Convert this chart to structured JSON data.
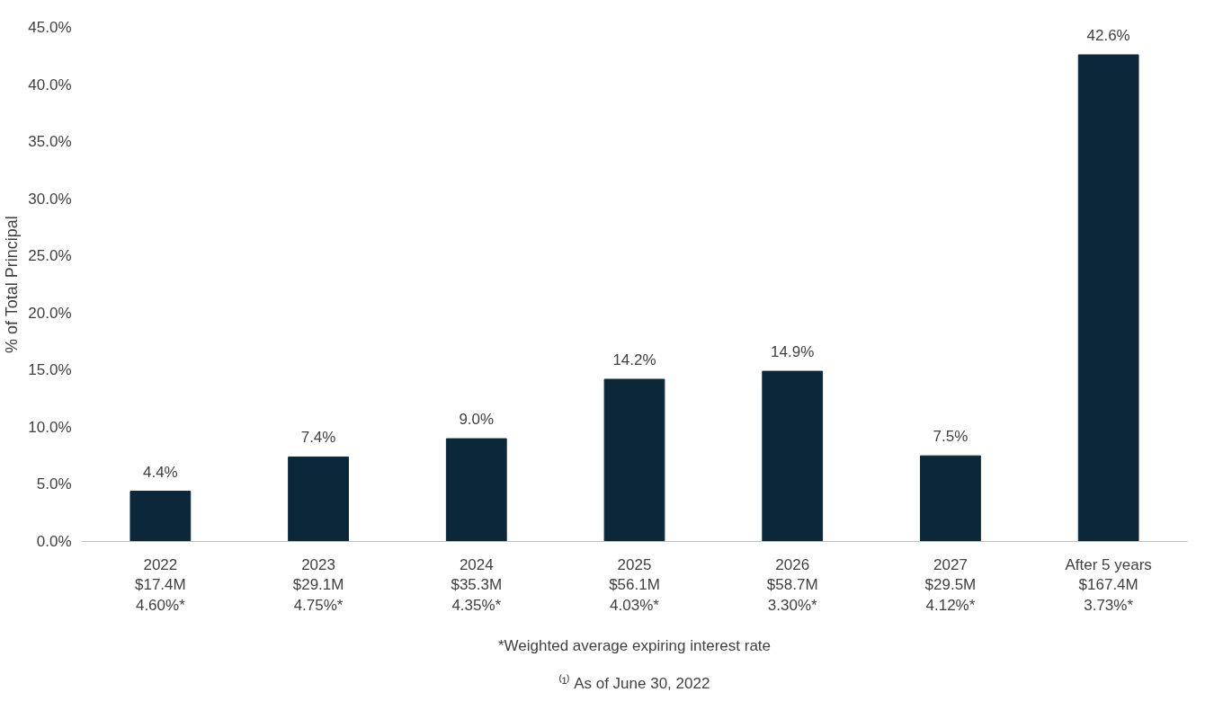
{
  "chart_data": {
    "type": "bar",
    "ylabel": "% of Total Principal",
    "categories": [
      "2022\n$17.4M\n4.60%*",
      "2023\n$29.1M\n4.75%*",
      "2024\n$35.3M\n4.35%*",
      "2025\n$56.1M\n4.03%*",
      "2026\n$58.7M\n3.30%*",
      "2027\n$29.5M\n4.12%*",
      "After 5 years\n$167.4M\n3.73%*"
    ],
    "values": [
      4.4,
      7.4,
      9.0,
      14.2,
      14.9,
      7.5,
      42.6
    ],
    "value_labels": [
      "4.4%",
      "7.4%",
      "9.0%",
      "14.2%",
      "14.9%",
      "7.5%",
      "42.6%"
    ],
    "color": "#0b2739",
    "ylim": [
      0,
      45
    ],
    "yticks": [
      {
        "value": 0,
        "label": "0.0%"
      },
      {
        "value": 5,
        "label": "5.0%"
      },
      {
        "value": 10,
        "label": "10.0%"
      },
      {
        "value": 15,
        "label": "15.0%"
      },
      {
        "value": 20,
        "label": "20.0%"
      },
      {
        "value": 25,
        "label": "25.0%"
      },
      {
        "value": 30,
        "label": "30.0%"
      },
      {
        "value": 35,
        "label": "35.0%"
      },
      {
        "value": 40,
        "label": "40.0%"
      },
      {
        "value": 45,
        "label": "45.0%"
      }
    ],
    "grid": false,
    "annotations": [
      "*Weighted average expiring interest rate",
      "⁽¹⁾ As of June 30, 2022"
    ]
  }
}
